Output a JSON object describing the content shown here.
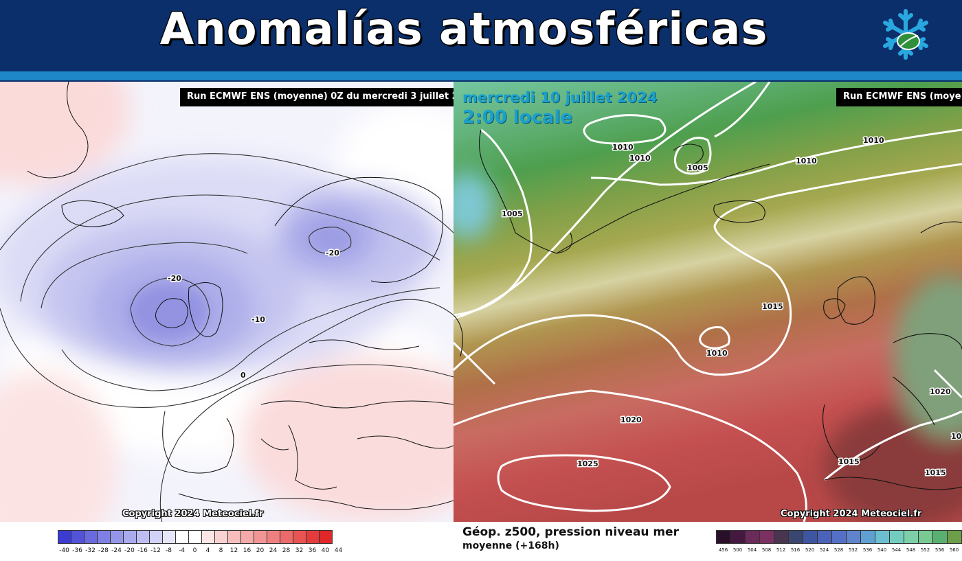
{
  "header": {
    "title": "Anomalías atmosféricas",
    "logo_icon": "snowflake-leaf-icon"
  },
  "left_map": {
    "run_label": "Run ECMWF ENS (moyenne) 0Z du mercredi 3 juillet 2",
    "copyright": "Copyright 2024 Meteociel.fr",
    "contour_labels": [
      "-20",
      "-20",
      "-10",
      "0"
    ],
    "legend_colors": [
      "#3c3cd2",
      "#5353d8",
      "#6a6ade",
      "#8080e4",
      "#9595ea",
      "#aaaaef",
      "#bebef4",
      "#d2d2f8",
      "#e6e6fb",
      "#ffffff",
      "#ffffff",
      "#fde6e6",
      "#fbd2d2",
      "#f8bebe",
      "#f5a9a9",
      "#f29595",
      "#ef8080",
      "#eb6a6a",
      "#e85454",
      "#e43c3c",
      "#e02828"
    ],
    "legend_ticks": [
      "-40",
      "-36",
      "-32",
      "-28",
      "-24",
      "-20",
      "-16",
      "-12",
      "-8",
      "-4",
      "0",
      "4",
      "8",
      "12",
      "16",
      "20",
      "24",
      "28",
      "32",
      "36",
      "40",
      "44"
    ]
  },
  "right_map": {
    "date_line1": "mercredi 10 juillet 2024",
    "date_line2": "2:00 locale",
    "run_label": "Run ECMWF ENS (moye",
    "copyright": "Copyright 2024 Meteociel.fr",
    "isobar_labels": [
      "1010",
      "1010",
      "1005",
      "1010",
      "1010",
      "1005",
      "1015",
      "1010",
      "1020",
      "1020",
      "1025",
      "1015",
      "1015",
      "10"
    ],
    "caption_line1": "Géop. z500, pression niveau mer",
    "caption_line2": "moyenne   (+168h)",
    "legend_colors": [
      "#2a0f2a",
      "#45193f",
      "#6a2a5a",
      "#7a3060",
      "#4a3550",
      "#3a4670",
      "#3e55a0",
      "#4a62b8",
      "#5470c6",
      "#5f84cc",
      "#5f9fd2",
      "#6cbfd0",
      "#72cdbf",
      "#7ccfa8",
      "#78c992",
      "#5ab070",
      "#6d9e4a",
      "#9aa848"
    ],
    "legend_ticks": [
      "456",
      "500",
      "504",
      "508",
      "512",
      "516",
      "520",
      "524",
      "528",
      "532",
      "536",
      "540",
      "544",
      "548",
      "552",
      "556",
      "560",
      "5"
    ]
  }
}
